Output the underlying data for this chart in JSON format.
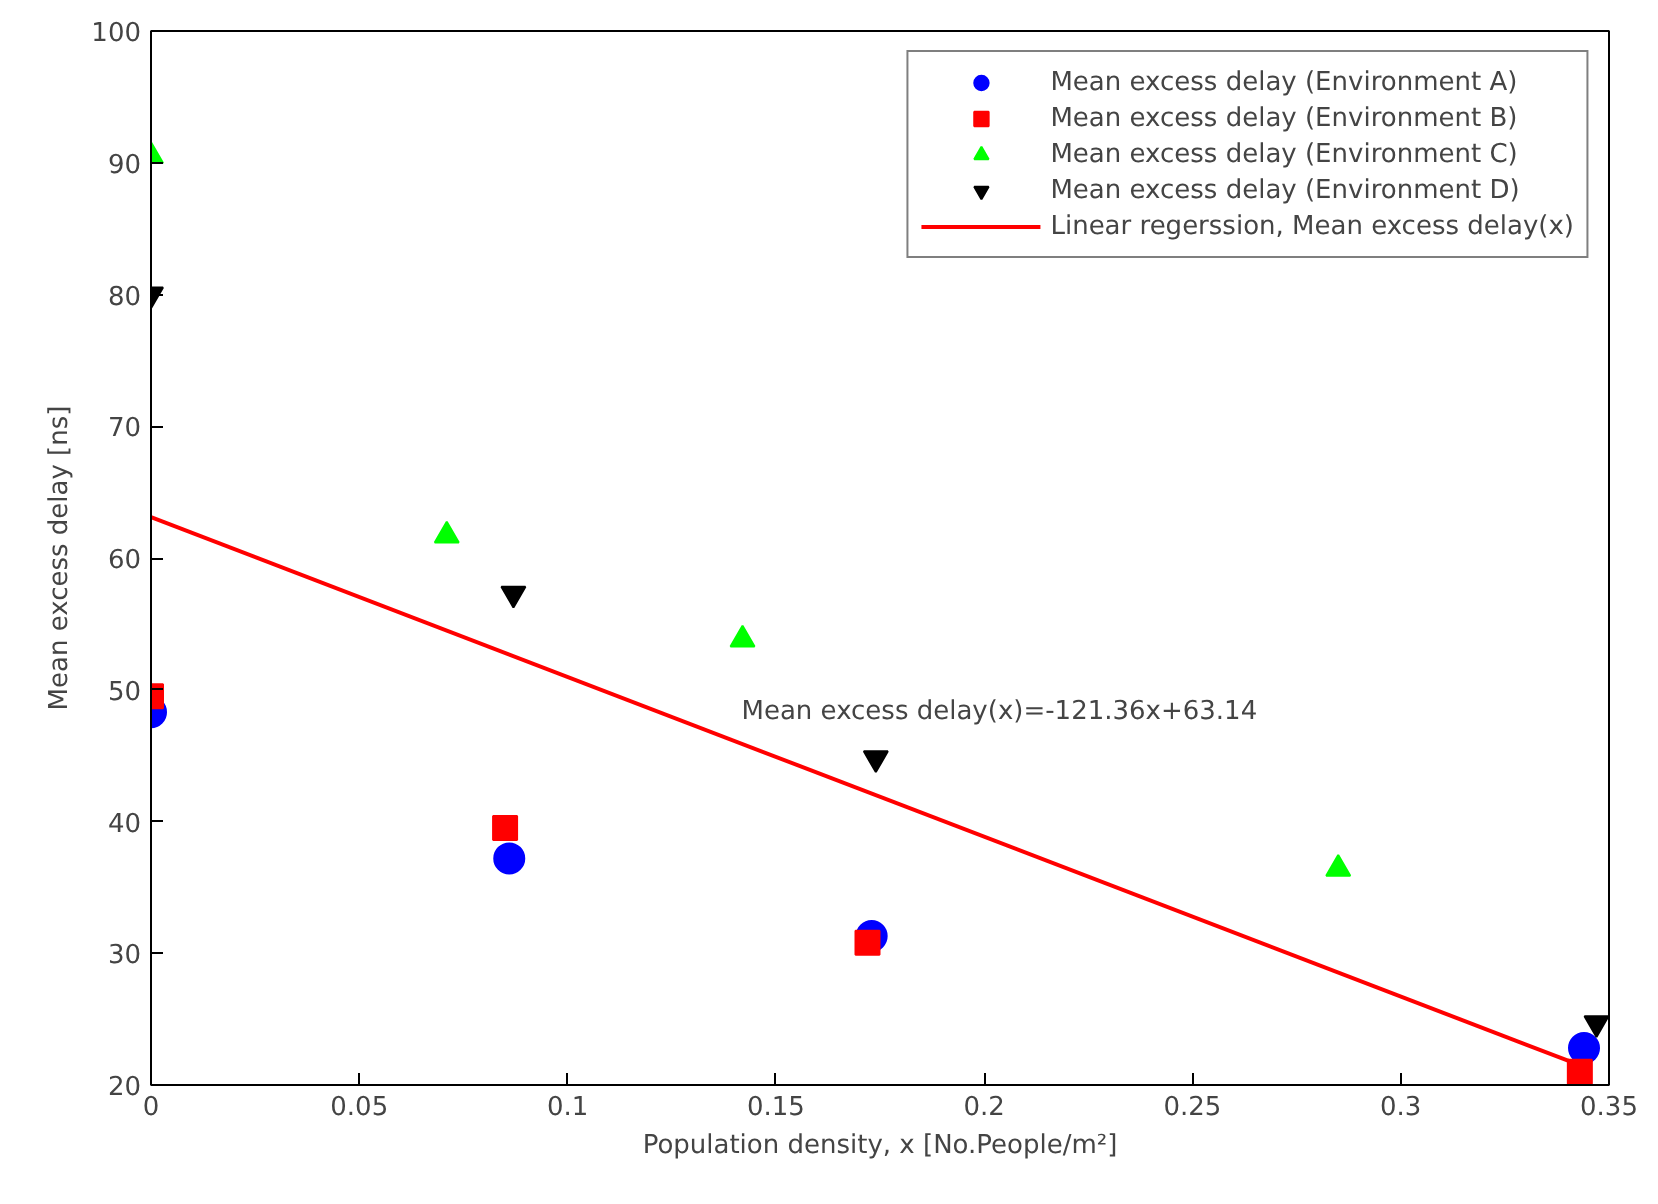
{
  "chart_data": {
    "type": "scatter",
    "xlabel": "Population density, x [No.People/m²]",
    "ylabel": "Mean excess delay [ns]",
    "xlim": [
      0,
      0.35
    ],
    "ylim": [
      20,
      100
    ],
    "xticks": [
      0,
      0.05,
      0.1,
      0.15,
      0.2,
      0.25,
      0.3,
      0.35
    ],
    "yticks": [
      20,
      30,
      40,
      50,
      60,
      70,
      80,
      90,
      100
    ],
    "grid": false,
    "legend": "top right",
    "series": [
      {
        "name": "Mean excess delay (Environment A)",
        "color": "#0000ff",
        "marker": "circle",
        "x": [
          0,
          0.086,
          0.173,
          0.344
        ],
        "values": [
          48.3,
          37.2,
          31.3,
          22.8
        ]
      },
      {
        "name": "Mean excess delay (Environment B)",
        "color": "#ff0000",
        "marker": "square",
        "x": [
          0,
          0.085,
          0.172,
          0.343
        ],
        "values": [
          49.5,
          39.5,
          30.8,
          21
        ]
      },
      {
        "name": "Mean excess delay (Environment C)",
        "color": "#00ff00",
        "marker": "triangle",
        "x": [
          0,
          0.071,
          0.142,
          0.285
        ],
        "values": [
          90.5,
          61.7,
          53.8,
          36.4
        ]
      },
      {
        "name": "Mean excess delay (Environment D)",
        "color": "#000000",
        "x": [
          0,
          0.087,
          0.174,
          0.347
        ],
        "values": [
          80,
          57.3,
          44.8,
          24.7
        ]
      },
      {
        "name": "Linear regerssion, Mean excess delay(x)",
        "color": "#ff0000",
        "type": "line",
        "line_style": "solid",
        "x": [
          0,
          0.343
        ],
        "values": [
          63.1,
          21.5
        ]
      }
    ],
    "annotations": [
      "Mean excess delay(x)=-121.36x+63.14"
    ]
  }
}
